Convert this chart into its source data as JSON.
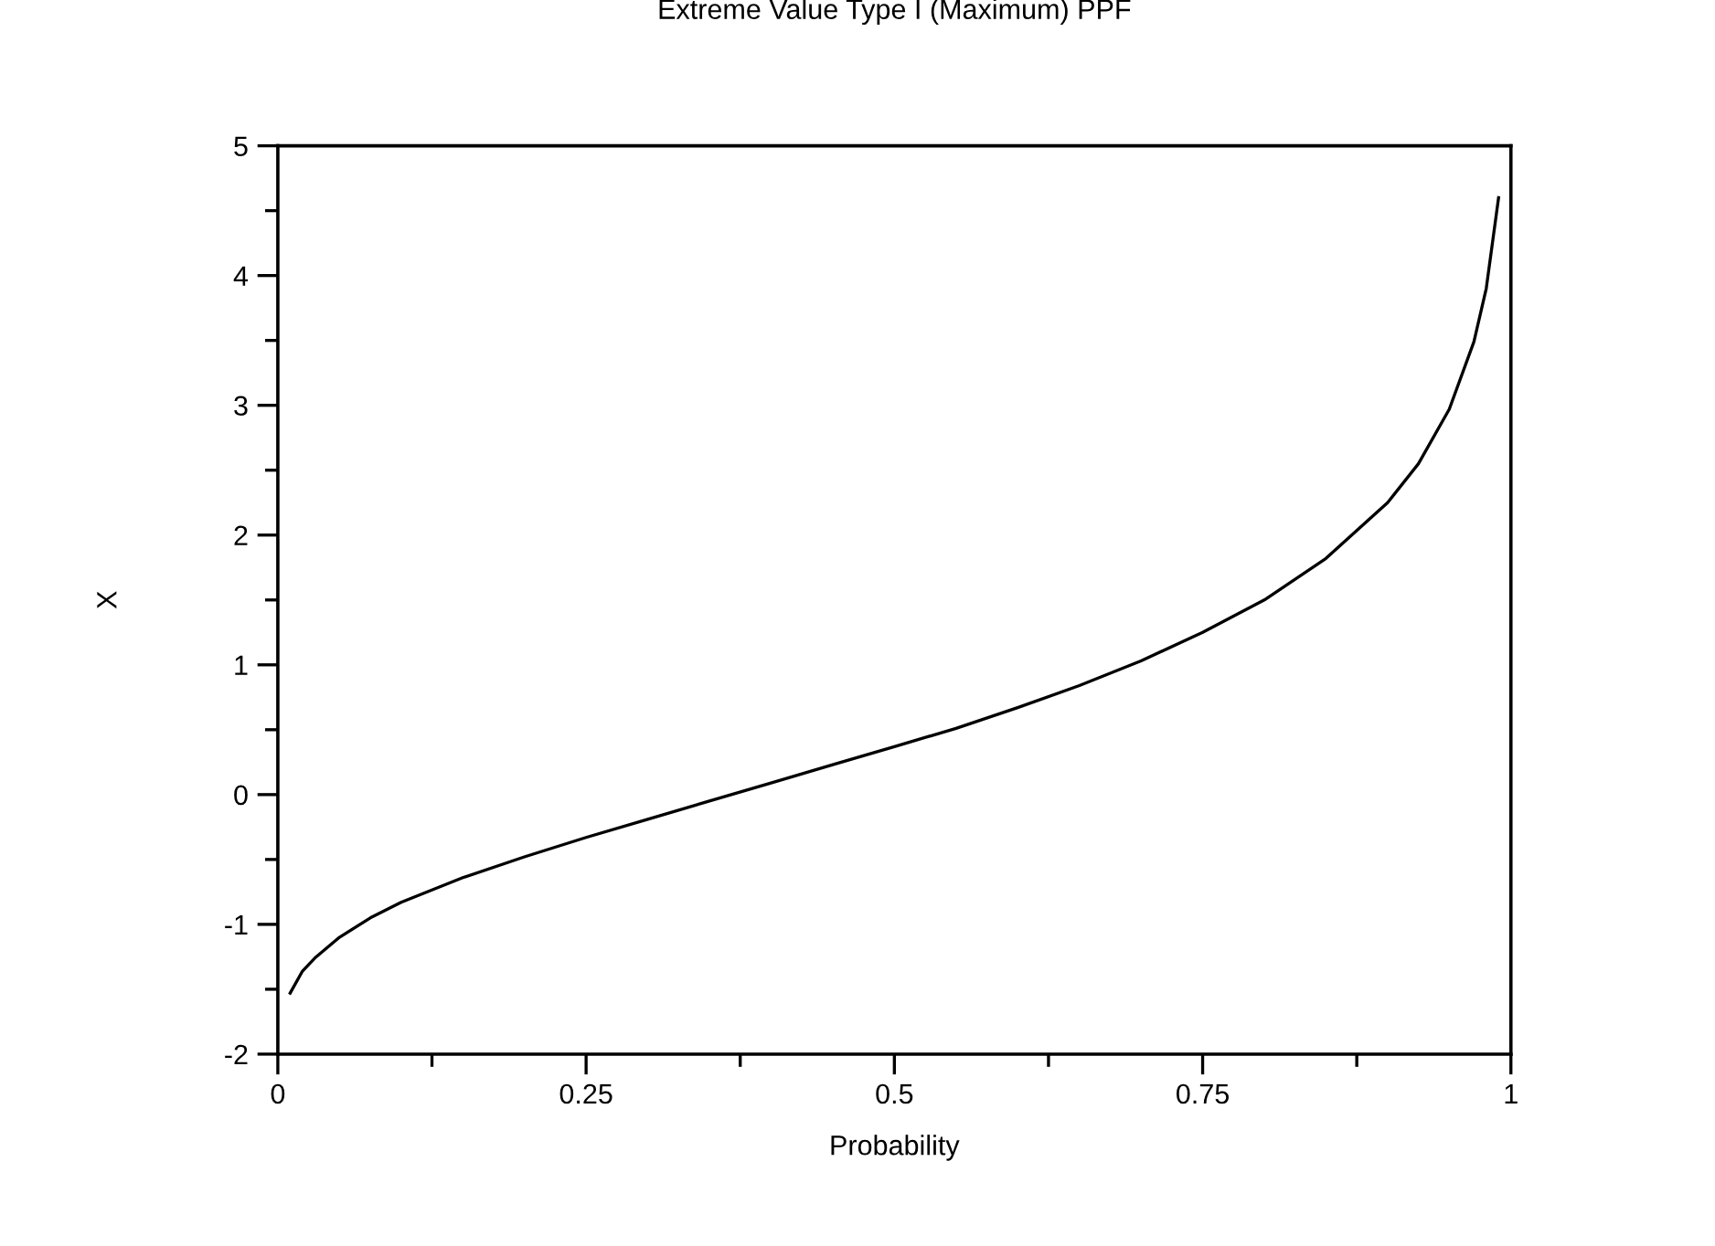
{
  "chart_data": {
    "type": "line",
    "title": "Extreme Value Type I (Maximum) PPF",
    "xlabel": "Probability",
    "ylabel": "X",
    "x": [
      0.01,
      0.02,
      0.03,
      0.05,
      0.075,
      0.1,
      0.15,
      0.2,
      0.25,
      0.3,
      0.35,
      0.4,
      0.45,
      0.5,
      0.55,
      0.6,
      0.65,
      0.7,
      0.75,
      0.8,
      0.85,
      0.9,
      0.925,
      0.95,
      0.97,
      0.98,
      0.99
    ],
    "series": [
      {
        "color": "#000000",
        "values": [
          -1.53,
          -1.36,
          -1.26,
          -1.1,
          -0.95,
          -0.83,
          -0.64,
          -0.48,
          -0.33,
          -0.19,
          -0.05,
          0.09,
          0.23,
          0.37,
          0.51,
          0.67,
          0.84,
          1.03,
          1.25,
          1.5,
          1.82,
          2.25,
          2.55,
          2.97,
          3.49,
          3.9,
          4.6
        ]
      }
    ],
    "xlim": [
      0,
      1
    ],
    "ylim": [
      -2,
      5
    ],
    "xticks": [
      0,
      {
        "value": 0.125,
        "label": null
      },
      0.25,
      {
        "value": 0.375,
        "label": null
      },
      0.5,
      {
        "value": 0.625,
        "label": null
      },
      0.75,
      {
        "value": 0.875,
        "label": null
      },
      1
    ],
    "yticks": [
      -2,
      {
        "value": -1.5,
        "label": null
      },
      -1,
      {
        "value": -0.5,
        "label": null
      },
      0,
      {
        "value": 0.5,
        "label": null
      },
      1,
      {
        "value": 1.5,
        "label": null
      },
      2,
      {
        "value": 2.5,
        "label": null
      },
      3,
      {
        "value": 3.5,
        "label": null
      },
      4,
      {
        "value": 4.5,
        "label": null
      },
      5
    ],
    "grid": false,
    "legend": false,
    "marker": "none",
    "line_style": "solid"
  }
}
